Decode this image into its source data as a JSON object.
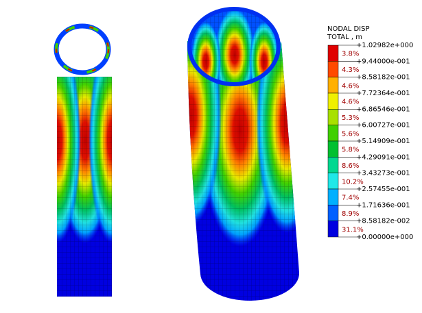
{
  "legend": {
    "title": [
      "NODAL DISP",
      "TOTAL , m"
    ],
    "levels": [
      "+1.02982e+000",
      "+9.44000e-001",
      "+8.58182e-001",
      "+7.72364e-001",
      "+6.86546e-001",
      "+6.00727e-001",
      "+5.14909e-001",
      "+4.29091e-001",
      "+3.43273e-001",
      "+2.57455e-001",
      "+1.71636e-001",
      "+8.58182e-002",
      "+0.00000e+000"
    ],
    "bands": [
      {
        "percent": "3.8%",
        "color": "#e00000"
      },
      {
        "percent": "4.3%",
        "color": "#ff4a00"
      },
      {
        "percent": "4.6%",
        "color": "#ffb000"
      },
      {
        "percent": "4.6%",
        "color": "#f0f000"
      },
      {
        "percent": "5.3%",
        "color": "#a8e000"
      },
      {
        "percent": "5.6%",
        "color": "#40d000"
      },
      {
        "percent": "5.8%",
        "color": "#00c030"
      },
      {
        "percent": "8.6%",
        "color": "#00d890"
      },
      {
        "percent": "10.2%",
        "color": "#20e8e8"
      },
      {
        "percent": "7.4%",
        "color": "#00b0ff"
      },
      {
        "percent": "8.9%",
        "color": "#0060ff"
      },
      {
        "percent": "31.1%",
        "color": "#0000e0"
      }
    ]
  }
}
